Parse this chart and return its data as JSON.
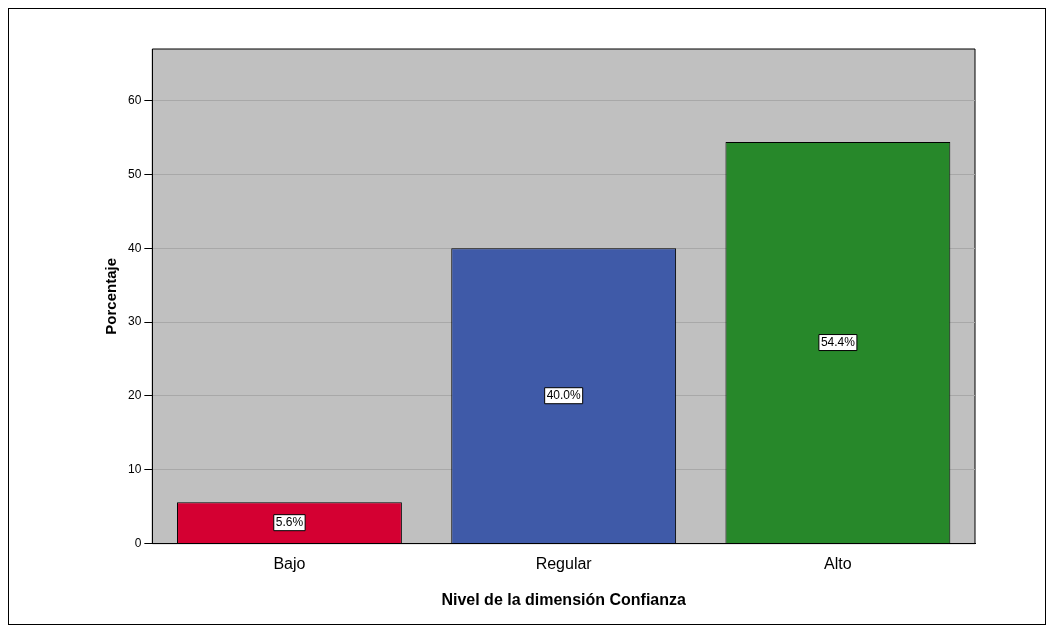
{
  "chart_data": {
    "type": "bar",
    "xlabel": "Nivel de la dimensión Confianza",
    "ylabel": "Porcentaje",
    "categories": [
      "Bajo",
      "Regular",
      "Alto"
    ],
    "values": [
      5.6,
      40.0,
      54.4
    ],
    "colors": [
      "#d40032",
      "#3f5aa8",
      "#27882a"
    ],
    "value_labels": [
      "5.6%",
      "40.0%",
      "54.4%"
    ],
    "ylim": [
      0,
      67
    ],
    "yticks": [
      0,
      10,
      20,
      30,
      40,
      50,
      60
    ],
    "grid": "y",
    "legend": false
  }
}
